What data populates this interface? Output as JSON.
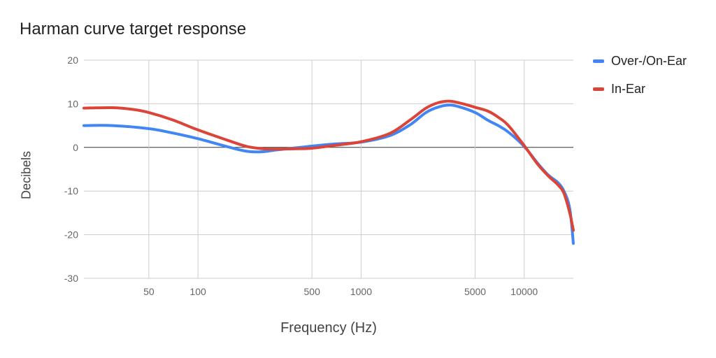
{
  "chart_data": {
    "type": "line",
    "title": "Harman curve target response",
    "xlabel": "Frequency (Hz)",
    "ylabel": "Decibels",
    "x_scale": "log",
    "xlim": [
      20,
      20000
    ],
    "ylim": [
      -30,
      20
    ],
    "x_ticks": [
      50,
      100,
      500,
      1000,
      5000,
      10000
    ],
    "x_tick_labels": [
      "50",
      "100",
      "500",
      "1000",
      "5000",
      "10000"
    ],
    "y_ticks": [
      20,
      10,
      0,
      -10,
      -20,
      -30
    ],
    "y_tick_labels": [
      "20",
      "10",
      "0",
      "-10",
      "-20",
      "-30"
    ],
    "grid": true,
    "legend_position": "right",
    "series": [
      {
        "name": "Over-/On-Ear",
        "color": "#4285f4",
        "points": [
          [
            20,
            5
          ],
          [
            30,
            5
          ],
          [
            50,
            4.3
          ],
          [
            70,
            3.3
          ],
          [
            100,
            2
          ],
          [
            150,
            0.2
          ],
          [
            200,
            -0.9
          ],
          [
            250,
            -1
          ],
          [
            300,
            -0.6
          ],
          [
            400,
            -0.1
          ],
          [
            500,
            0.3
          ],
          [
            700,
            0.8
          ],
          [
            1000,
            1.2
          ],
          [
            1500,
            2.7
          ],
          [
            2000,
            5.2
          ],
          [
            2500,
            8
          ],
          [
            3000,
            9.3
          ],
          [
            3500,
            9.7
          ],
          [
            4000,
            9.3
          ],
          [
            5000,
            8
          ],
          [
            6000,
            6.2
          ],
          [
            7000,
            4.9
          ],
          [
            8000,
            3.5
          ],
          [
            10000,
            0.2
          ],
          [
            12000,
            -3.5
          ],
          [
            14000,
            -6.3
          ],
          [
            16000,
            -8
          ],
          [
            17500,
            -10
          ],
          [
            19000,
            -14
          ],
          [
            20000,
            -22
          ]
        ]
      },
      {
        "name": "In-Ear",
        "color": "#db4437",
        "points": [
          [
            20,
            9
          ],
          [
            30,
            9.1
          ],
          [
            40,
            8.7
          ],
          [
            50,
            8
          ],
          [
            70,
            6.3
          ],
          [
            100,
            4
          ],
          [
            150,
            1.7
          ],
          [
            200,
            0.2
          ],
          [
            250,
            -0.3
          ],
          [
            300,
            -0.4
          ],
          [
            400,
            -0.3
          ],
          [
            500,
            -0.2
          ],
          [
            700,
            0.5
          ],
          [
            1000,
            1.3
          ],
          [
            1500,
            3.2
          ],
          [
            2000,
            6.3
          ],
          [
            2500,
            9
          ],
          [
            3000,
            10.3
          ],
          [
            3500,
            10.6
          ],
          [
            4000,
            10.2
          ],
          [
            5000,
            9.2
          ],
          [
            6000,
            8.3
          ],
          [
            7000,
            6.8
          ],
          [
            8000,
            5
          ],
          [
            10000,
            0.4
          ],
          [
            12000,
            -3.7
          ],
          [
            14000,
            -6.5
          ],
          [
            16000,
            -8.5
          ],
          [
            17500,
            -10.5
          ],
          [
            19000,
            -15
          ],
          [
            20000,
            -19
          ]
        ]
      }
    ]
  }
}
